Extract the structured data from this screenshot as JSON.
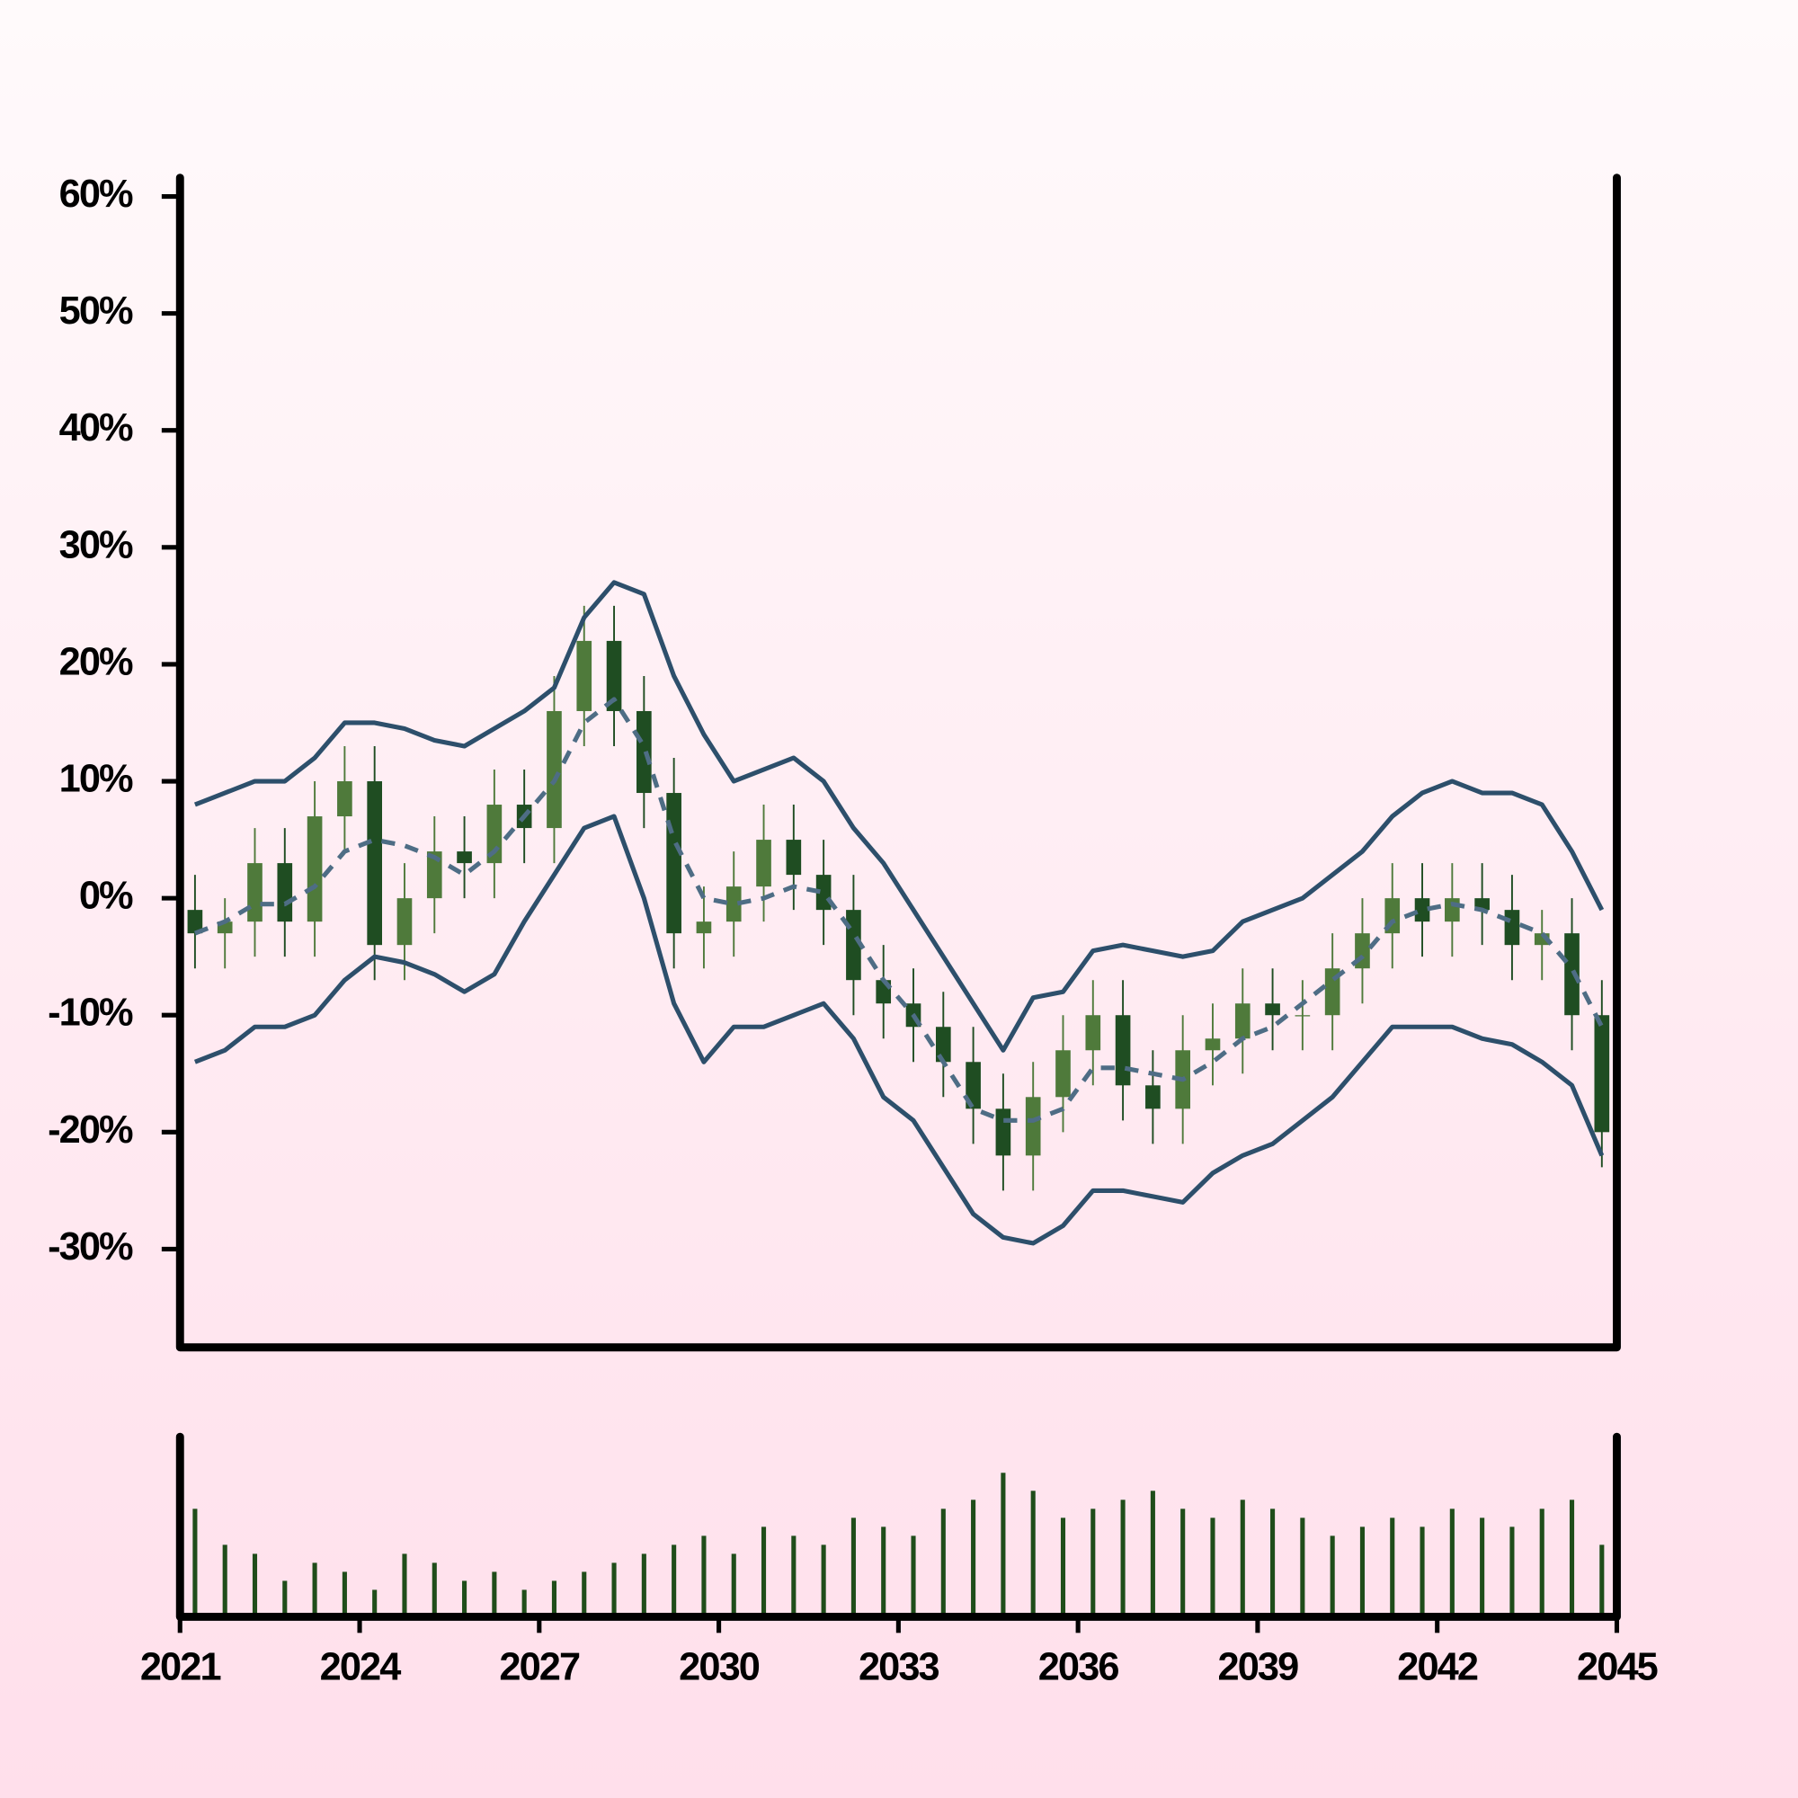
{
  "chart_data": {
    "type": "candlestick",
    "x": [
      2021,
      2021.5,
      2022,
      2022.5,
      2023,
      2023.5,
      2024,
      2024.5,
      2025,
      2025.5,
      2026,
      2026.5,
      2027,
      2027.5,
      2028,
      2028.5,
      2029,
      2029.5,
      2030,
      2030.5,
      2031,
      2031.5,
      2032,
      2032.5,
      2033,
      2033.5,
      2034,
      2034.5,
      2035,
      2035.5,
      2036,
      2036.5,
      2037,
      2037.5,
      2038,
      2038.5,
      2039,
      2039.5,
      2040,
      2040.5,
      2041,
      2041.5,
      2042,
      2042.5,
      2043,
      2043.5,
      2044,
      2044.5
    ],
    "open": [
      -1,
      -3,
      -2,
      3,
      -2,
      7,
      10,
      -4,
      0,
      4,
      3,
      8,
      6,
      16,
      22,
      16,
      9,
      -3,
      -2,
      1,
      5,
      2,
      -1,
      -7,
      -9,
      -11,
      -14,
      -18,
      -22,
      -17,
      -13,
      -10,
      -16,
      -18,
      -13,
      -12,
      -9,
      -10,
      -10,
      -6,
      -3,
      0,
      -2,
      0,
      -1,
      -4,
      -3,
      -10
    ],
    "high": [
      2,
      0,
      6,
      6,
      10,
      13,
      13,
      3,
      7,
      7,
      11,
      11,
      19,
      25,
      25,
      19,
      12,
      1,
      4,
      8,
      8,
      5,
      2,
      -4,
      -6,
      -8,
      -11,
      -15,
      -14,
      -10,
      -7,
      -7,
      -13,
      -10,
      -9,
      -6,
      -6,
      -7,
      -3,
      0,
      3,
      3,
      3,
      3,
      2,
      -1,
      0,
      -7
    ],
    "low": [
      -6,
      -6,
      -5,
      -5,
      -5,
      4,
      -7,
      -7,
      -3,
      0,
      0,
      3,
      3,
      13,
      13,
      6,
      -6,
      -6,
      -5,
      -2,
      -1,
      -4,
      -10,
      -12,
      -14,
      -17,
      -21,
      -25,
      -25,
      -20,
      -16,
      -19,
      -21,
      -21,
      -16,
      -15,
      -13,
      -13,
      -13,
      -9,
      -6,
      -5,
      -5,
      -4,
      -7,
      -7,
      -13,
      -23
    ],
    "close": [
      -3,
      -2,
      3,
      -2,
      7,
      10,
      -4,
      0,
      4,
      3,
      8,
      6,
      16,
      22,
      16,
      9,
      -3,
      -2,
      1,
      5,
      2,
      -1,
      -7,
      -9,
      -11,
      -14,
      -18,
      -22,
      -17,
      -13,
      -10,
      -16,
      -18,
      -13,
      -12,
      -9,
      -10,
      -10,
      -6,
      -3,
      0,
      -2,
      0,
      -1,
      -4,
      -3,
      -10,
      -20
    ],
    "up_color": "#4f7a3b",
    "down_color": "#1f4d22",
    "bands": {
      "upper": [
        8,
        9,
        10,
        10,
        12,
        15,
        15,
        14.5,
        13.5,
        13,
        14.5,
        16,
        18,
        24,
        27,
        26,
        19,
        14,
        10,
        11,
        12,
        10,
        6,
        3,
        -1,
        -5,
        -9,
        -13,
        -8.5,
        -8,
        -4.5,
        -4,
        -4.5,
        -5,
        -4.5,
        -2,
        -1,
        0,
        2,
        4,
        7,
        9,
        10,
        9,
        9,
        8,
        4,
        -1
      ],
      "middle": [
        -3,
        -2,
        -0.5,
        -0.5,
        1,
        4,
        5,
        4.5,
        3.5,
        2,
        4,
        7,
        10,
        15,
        17,
        13,
        5,
        0,
        -0.5,
        0,
        1,
        0.5,
        -3,
        -7,
        -10,
        -14,
        -18,
        -19,
        -19,
        -18,
        -14.5,
        -14.5,
        -15,
        -15.5,
        -14,
        -12,
        -11,
        -9,
        -7,
        -5,
        -2,
        -1,
        -0.5,
        -1,
        -2,
        -3,
        -6,
        -11
      ],
      "lower": [
        -14,
        -13,
        -11,
        -11,
        -10,
        -7,
        -5,
        -5.5,
        -6.5,
        -8,
        -6.5,
        -2,
        2,
        6,
        7,
        0,
        -9,
        -14,
        -11,
        -11,
        -10,
        -9,
        -12,
        -17,
        -19,
        -23,
        -27,
        -29,
        -29.5,
        -28,
        -25,
        -25,
        -25.5,
        -26,
        -23.5,
        -22,
        -21,
        -19,
        -17,
        -14,
        -11,
        -11,
        -11,
        -12,
        -12.5,
        -14,
        -16,
        -22
      ]
    },
    "band_color": "#2d4f6b",
    "middle_color": "#4e6d85",
    "volume": [
      60,
      40,
      35,
      20,
      30,
      25,
      15,
      35,
      30,
      20,
      25,
      15,
      20,
      25,
      30,
      35,
      40,
      45,
      35,
      50,
      45,
      40,
      55,
      50,
      45,
      60,
      65,
      80,
      70,
      55,
      60,
      65,
      70,
      60,
      55,
      65,
      60,
      55,
      45,
      50,
      55,
      50,
      60,
      55,
      50,
      60,
      65,
      40
    ],
    "volume_color": "#1f4d1a",
    "vlim": [
      0,
      100
    ],
    "xlim": [
      2021,
      2045
    ],
    "xticks": [
      2021,
      2024,
      2027,
      2030,
      2033,
      2036,
      2039,
      2042,
      2045
    ],
    "ylim": [
      -38.4,
      61.6
    ],
    "yticks": [
      {
        "value": -30,
        "label": "-30%"
      },
      {
        "value": -20,
        "label": "-20%"
      },
      {
        "value": -10,
        "label": "-10%"
      },
      {
        "value": 0,
        "label": "0%"
      },
      {
        "value": 10,
        "label": "10%"
      },
      {
        "value": 20,
        "label": "20%"
      },
      {
        "value": 30,
        "label": "30%"
      },
      {
        "value": 40,
        "label": "40%"
      },
      {
        "value": 50,
        "label": "50%"
      },
      {
        "value": 60,
        "label": "60%"
      }
    ]
  }
}
